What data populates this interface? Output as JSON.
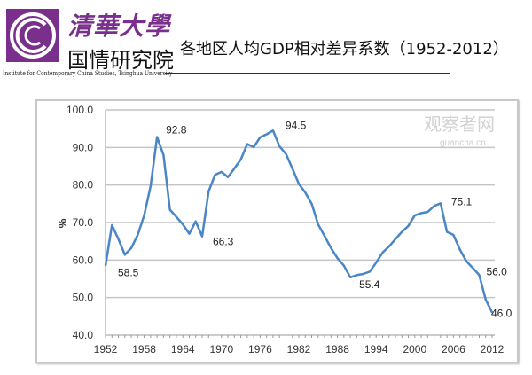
{
  "header": {
    "logo_cn": "清華大學",
    "logo_sub": "国情研究院",
    "logo_en": "Institute for Contemporary China Studies, Tsinghua University",
    "brand_color": "#7b2f8c"
  },
  "watermark": {
    "cn": "观察者网",
    "url": "guancha.cn"
  },
  "chart_data": {
    "type": "line",
    "title": "各地区人均GDP相对差异系数（1952-2012）",
    "xlabel": "",
    "ylabel": "%",
    "ylim": [
      40,
      100
    ],
    "xlim": [
      1952,
      2012
    ],
    "yticks": [
      "40.0",
      "50.0",
      "60.0",
      "70.0",
      "80.0",
      "90.0",
      "100.0"
    ],
    "xticks": [
      "1952",
      "1958",
      "1964",
      "1970",
      "1976",
      "1982",
      "1988",
      "1994",
      "2000",
      "2006",
      "2012"
    ],
    "grid": true,
    "line_color": "#4a86c5",
    "x": [
      1952,
      1953,
      1954,
      1955,
      1956,
      1957,
      1958,
      1959,
      1960,
      1961,
      1962,
      1963,
      1964,
      1965,
      1966,
      1967,
      1968,
      1969,
      1970,
      1971,
      1972,
      1973,
      1974,
      1975,
      1976,
      1977,
      1978,
      1979,
      1980,
      1981,
      1982,
      1983,
      1984,
      1985,
      1986,
      1987,
      1988,
      1989,
      1990,
      1991,
      1992,
      1993,
      1994,
      1995,
      1996,
      1997,
      1998,
      1999,
      2000,
      2001,
      2002,
      2003,
      2004,
      2005,
      2006,
      2007,
      2008,
      2009,
      2010,
      2011,
      2012
    ],
    "values": [
      58.5,
      69.3,
      65.6,
      61.4,
      63.2,
      66.7,
      71.9,
      79.7,
      92.8,
      88.0,
      73.4,
      71.5,
      69.5,
      67.0,
      70.3,
      66.3,
      78.3,
      82.7,
      83.5,
      82.1,
      84.4,
      86.8,
      90.9,
      90.1,
      92.7,
      93.5,
      94.5,
      90.3,
      88.3,
      84.4,
      80.3,
      78.0,
      75.0,
      69.5,
      66.4,
      63.2,
      60.5,
      58.5,
      55.4,
      56.0,
      56.3,
      56.9,
      59.3,
      62.0,
      63.6,
      65.6,
      67.5,
      69.1,
      71.9,
      72.5,
      72.8,
      74.4,
      75.1,
      67.5,
      66.7,
      62.8,
      59.7,
      57.9,
      56.0,
      49.5,
      46.0
    ],
    "annotations": [
      {
        "x": 1952,
        "y": 58.5,
        "text": "58.5"
      },
      {
        "x": 1960,
        "y": 92.8,
        "text": "92.8"
      },
      {
        "x": 1967,
        "y": 66.3,
        "text": "66.3"
      },
      {
        "x": 1978,
        "y": 94.5,
        "text": "94.5"
      },
      {
        "x": 1990,
        "y": 55.4,
        "text": "55.4"
      },
      {
        "x": 2004,
        "y": 75.1,
        "text": "75.1"
      },
      {
        "x": 2010,
        "y": 56.0,
        "text": "56.0"
      },
      {
        "x": 2012,
        "y": 46.0,
        "text": "46.0"
      }
    ]
  }
}
